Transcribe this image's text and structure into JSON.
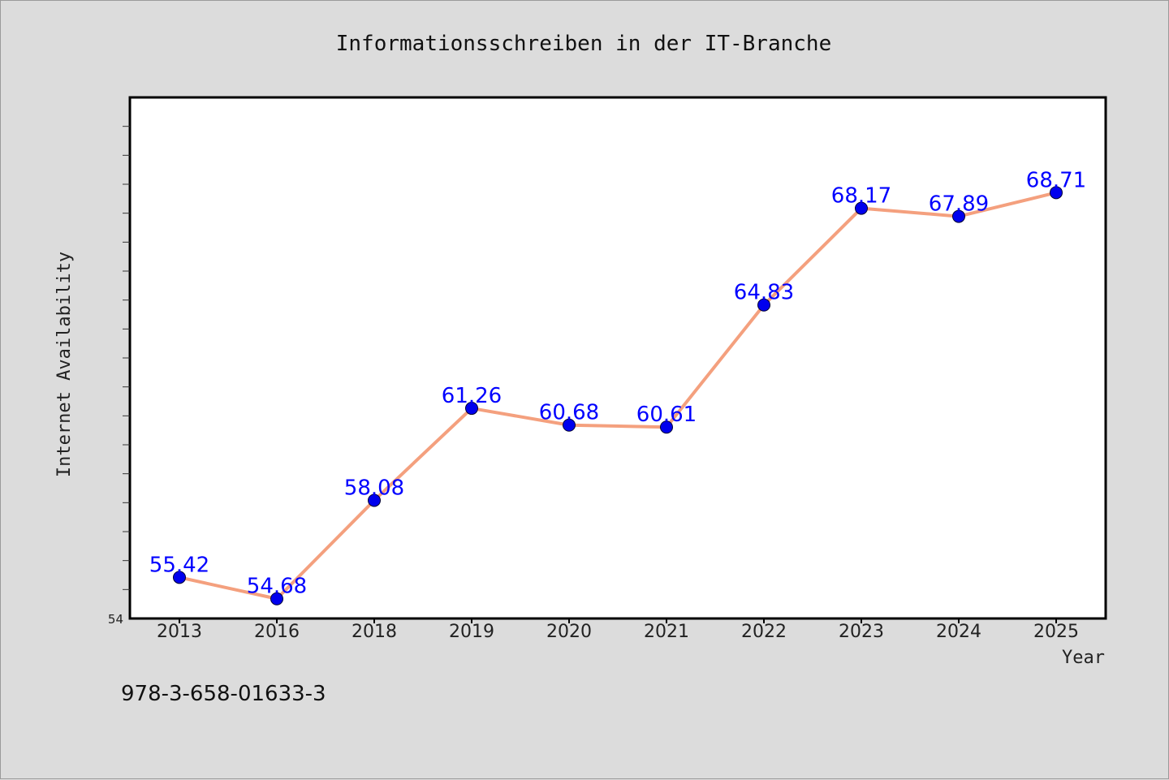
{
  "colors": {
    "background": "#dcdcdc",
    "plot_background": "#ffffff",
    "line": "#f4a07e",
    "marker": "#0000ee",
    "data_label": "#0000ff"
  },
  "footer": {
    "isbn": "978-3-658-01633-3"
  },
  "chart_data": {
    "type": "line",
    "title": "Informationsschreiben in der IT-Branche",
    "xlabel": "Year",
    "ylabel": "Internet Availability",
    "categories": [
      "2013",
      "2016",
      "2018",
      "2019",
      "2020",
      "2021",
      "2022",
      "2023",
      "2024",
      "2025"
    ],
    "series": [
      {
        "values": [
          55.42,
          54.68,
          58.08,
          61.26,
          60.68,
          60.61,
          64.83,
          68.17,
          67.89,
          68.71
        ],
        "labels": [
          "55.42",
          "54.68",
          "58.08",
          "61.26",
          "60.68",
          "60.61",
          "64.83",
          "68.17",
          "67.89",
          "68.71"
        ]
      }
    ],
    "ylim": [
      54,
      72
    ],
    "y_tick_labels": [
      "54"
    ],
    "grid": false,
    "legend": "none"
  }
}
